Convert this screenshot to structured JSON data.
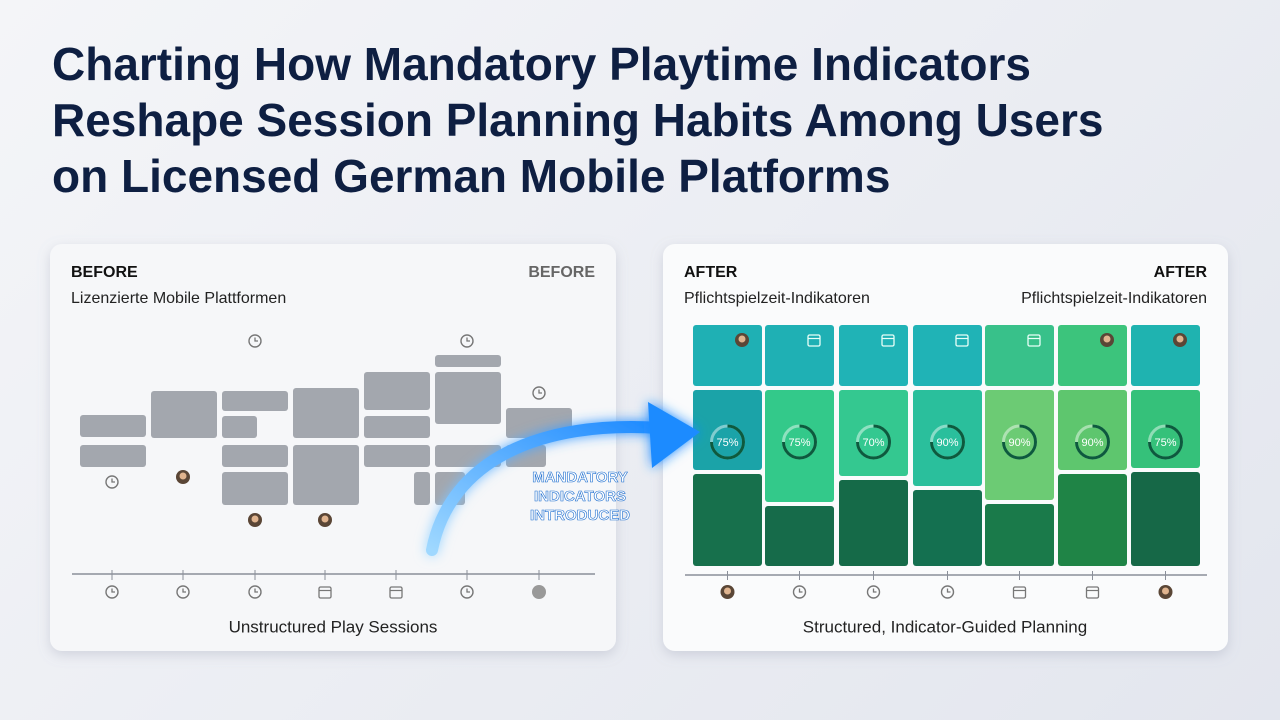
{
  "title_lines": [
    "Charting How Mandatory Playtime Indicators",
    "Reshape Session Planning Habits Among Users",
    "on Licensed German Mobile Platforms"
  ],
  "before": {
    "label": "BEFORE",
    "corner": "BEFORE",
    "subtitle": "Lizenzierte Mobile Plattformen",
    "caption": "Unstructured Play Sessions"
  },
  "arrow_label": [
    "MANDATORY",
    "INDICATORS",
    "INTRODUCED"
  ],
  "after": {
    "label": "AFTER",
    "corner": "AFTER",
    "subtitle": "Pflichtspielzeit-Indikatoren",
    "corner_subtitle": "Pflichtspielzeit-Indikatoren",
    "caption": "Structured, Indicator-Guided Planning",
    "percentages": [
      "75%",
      "75%",
      "70%",
      "90%",
      "90%",
      "90%",
      "75%"
    ]
  }
}
